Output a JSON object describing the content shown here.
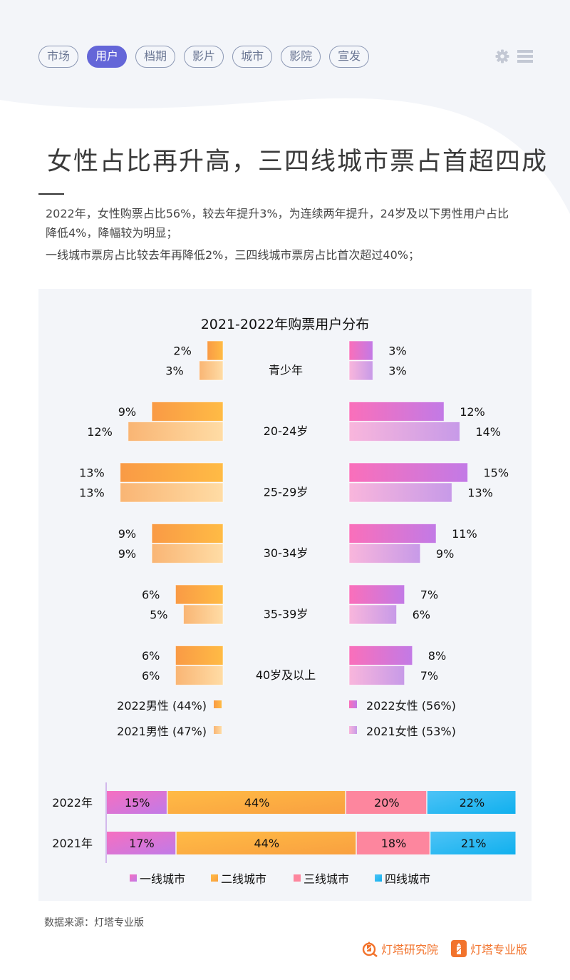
{
  "nav": {
    "tabs": [
      {
        "label": "市场",
        "active": false
      },
      {
        "label": "用户",
        "active": true
      },
      {
        "label": "档期",
        "active": false
      },
      {
        "label": "影片",
        "active": false
      },
      {
        "label": "城市",
        "active": false
      },
      {
        "label": "影院",
        "active": false
      },
      {
        "label": "宣发",
        "active": false
      }
    ],
    "settings_icon": "gear-icon",
    "menu_icon": "hamburger-menu-icon"
  },
  "headline": "女性占比再升高，三四线城市票占首超四成",
  "summary": [
    "2022年，女性购票占比56%，较去年提升3%，为连续两年提升，24岁及以下男性用户占比降低4%，降幅较为明显；",
    "一线城市票房占比较去年再降低2%，三四线城市票房占比首次超过40%；"
  ],
  "colors": {
    "male_2022": [
      "#f99a45",
      "#ffbb45"
    ],
    "male_2021": [
      "#f9b574",
      "#ffdca5"
    ],
    "female_2022": [
      "#fa6fba",
      "#c27ae6"
    ],
    "female_2021": [
      "#f9b6dc",
      "#c79ae8"
    ],
    "tier1": [
      "#f66fc0",
      "#c07ae8"
    ],
    "tier2": [
      "#ffbb45",
      "#f9a040"
    ],
    "tier3": "#fd869e",
    "tier4": [
      "#4ec3f6",
      "#10b0ee"
    ],
    "accent": "#6466d8",
    "brand": "#f2732c"
  },
  "chart_data": [
    {
      "type": "bar",
      "subtype": "butterfly",
      "title": "2021-2022年购票用户分布",
      "categories": [
        "青少年",
        "20-24岁",
        "25-29岁",
        "30-34岁",
        "35-39岁",
        "40岁及以上"
      ],
      "series": [
        {
          "name": "2022男性 (44%)",
          "side": "left",
          "values": [
            2,
            9,
            13,
            9,
            6,
            6
          ]
        },
        {
          "name": "2021男性 (47%)",
          "side": "left",
          "values": [
            3,
            12,
            13,
            9,
            5,
            6
          ]
        },
        {
          "name": "2022女性 (56%)",
          "side": "right",
          "values": [
            3,
            12,
            15,
            11,
            7,
            8
          ]
        },
        {
          "name": "2021女性 (53%)",
          "side": "right",
          "values": [
            3,
            14,
            13,
            9,
            6,
            7
          ]
        }
      ],
      "value_suffix": "%",
      "legend": [
        "2022男性 (44%)",
        "2021男性 (47%)",
        "2022女性 (56%)",
        "2021女性 (53%)"
      ],
      "legend_position": "bottom"
    },
    {
      "type": "bar",
      "subtype": "stacked-horizontal-100",
      "categories": [
        "2022年",
        "2021年"
      ],
      "series": [
        {
          "name": "一线城市",
          "values": [
            15,
            17
          ]
        },
        {
          "name": "二线城市",
          "values": [
            44,
            44
          ]
        },
        {
          "name": "三线城市",
          "values": [
            20,
            18
          ]
        },
        {
          "name": "四线城市",
          "values": [
            22,
            21
          ]
        }
      ],
      "value_suffix": "%",
      "legend": [
        "一线城市",
        "二线城市",
        "三线城市",
        "四线城市"
      ],
      "legend_position": "bottom"
    }
  ],
  "footer": {
    "source": "数据来源：灯塔专业版",
    "brand_left": "灯塔研究院",
    "brand_right": "灯塔专业版"
  }
}
